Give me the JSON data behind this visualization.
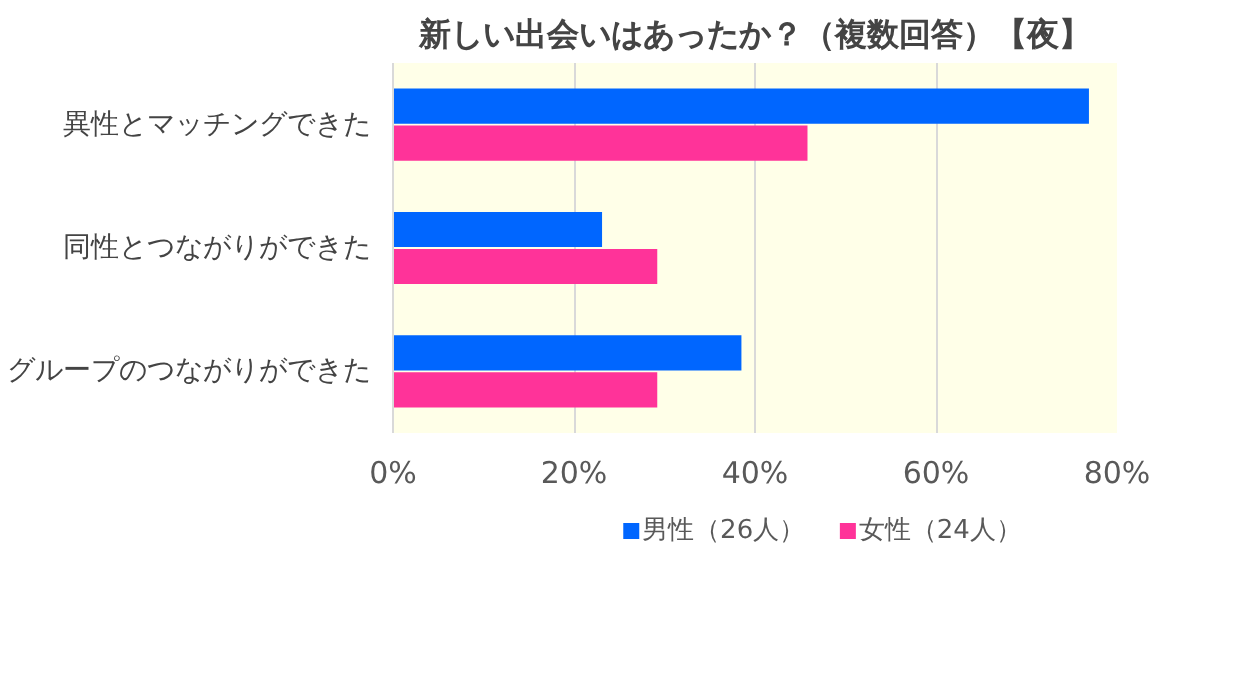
{
  "chart_data": {
    "type": "bar",
    "orientation": "horizontal",
    "title": "新しい出会いはあったか？（複数回答）【夜】",
    "categories": [
      "異性とマッチングできた",
      "同性とつながりができた",
      "グループのつながりができた"
    ],
    "series": [
      {
        "name": "男性（26人）",
        "color": "#0066ff",
        "values": [
          76.9,
          23.1,
          38.5
        ]
      },
      {
        "name": "女性（24人）",
        "color": "#ff3399",
        "values": [
          45.8,
          29.2,
          29.2
        ]
      }
    ],
    "xlim": [
      0,
      80
    ],
    "xticks": [
      {
        "value": 0,
        "label": "0%"
      },
      {
        "value": 20,
        "label": "20%"
      },
      {
        "value": 40,
        "label": "40%"
      },
      {
        "value": 60,
        "label": "60%"
      },
      {
        "value": 80,
        "label": "80%"
      }
    ],
    "grid": "x",
    "legend": "bottom"
  }
}
